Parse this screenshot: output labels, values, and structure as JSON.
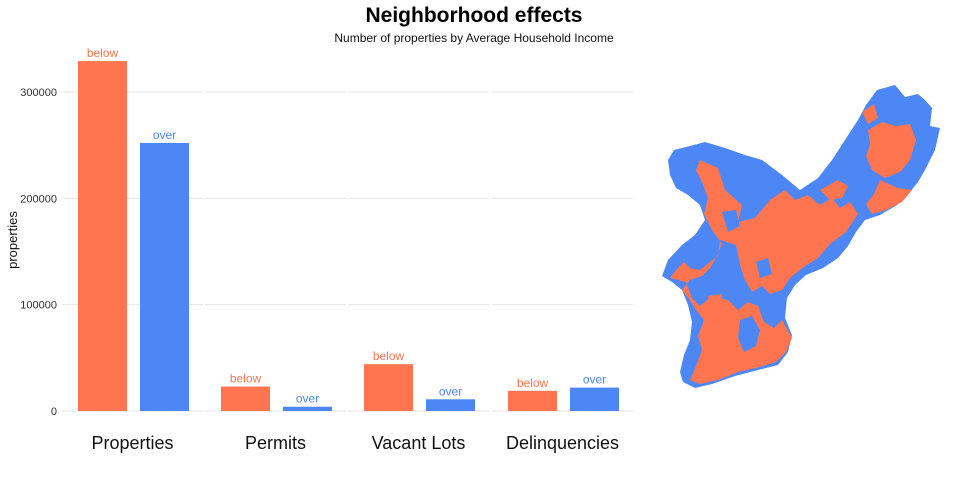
{
  "chart_data": {
    "type": "bar",
    "title": "Neighborhood effects",
    "subtitle": "Number of properties by Average Household Income",
    "ylabel": "properties",
    "ylim": [
      0,
      330000
    ],
    "yticks": [
      0,
      100000,
      200000,
      300000
    ],
    "ytick_labels": [
      "0",
      "100000",
      "200000",
      "300000"
    ],
    "grid": true,
    "facets": [
      "Properties",
      "Permits",
      "Vacant Lots",
      "Delinquencies"
    ],
    "groups": [
      "below",
      "over"
    ],
    "colors": {
      "below": "#FF7550",
      "over": "#4D86F5"
    },
    "series": [
      {
        "name": "below",
        "values": [
          329000,
          23000,
          44000,
          19000
        ]
      },
      {
        "name": "over",
        "values": [
          252000,
          4000,
          11000,
          22000
        ]
      }
    ]
  },
  "map": {
    "colors": {
      "below": "#FF7550",
      "over": "#4D86F5"
    }
  }
}
